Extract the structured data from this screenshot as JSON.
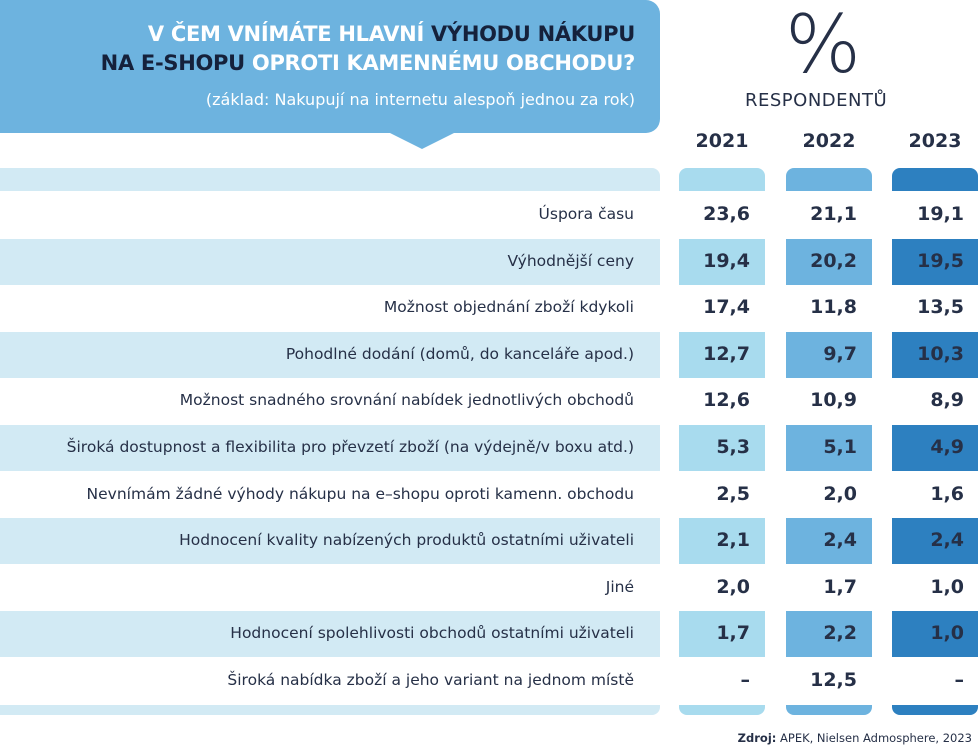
{
  "title": {
    "line1_a": "V ČEM VNÍMÁTE HLAVNÍ ",
    "line1_b": "VÝHODU NÁKUPU",
    "line2_a": "NA E-SHOPU",
    "line2_b": " OPROTI KAMENNÉMU OBCHODU?",
    "subtitle": "(základ: Nakupují na internetu alespoň jednou za rok)"
  },
  "unit": {
    "symbol": "%",
    "label": "RESPONDENTŮ"
  },
  "years": [
    "2021",
    "2022",
    "2023"
  ],
  "colors": {
    "y2021": "#a8dbee",
    "y2022": "#6db3df",
    "y2023": "#2d80c0",
    "row_shade": "#d2eaf4"
  },
  "rows": [
    {
      "label": "Úspora času",
      "values": [
        "23,6",
        "21,1",
        "19,1"
      ]
    },
    {
      "label": "Výhodnější ceny",
      "values": [
        "19,4",
        "20,2",
        "19,5"
      ]
    },
    {
      "label": "Možnost objednání zboží kdykoli",
      "values": [
        "17,4",
        "11,8",
        "13,5"
      ]
    },
    {
      "label": "Pohodlné dodání (domů, do kanceláře apod.)",
      "values": [
        "12,7",
        "9,7",
        "10,3"
      ]
    },
    {
      "label": "Možnost snadného srovnání nabídek jednotlivých obchodů",
      "values": [
        "12,6",
        "10,9",
        "8,9"
      ]
    },
    {
      "label": "Široká dostupnost a flexibilita pro převzetí zboží (na výdejně/v boxu atd.)",
      "values": [
        "5,3",
        "5,1",
        "4,9"
      ]
    },
    {
      "label": "Nevnímám žádné výhody nákupu na e–shopu oproti kamenn. obchodu",
      "values": [
        "2,5",
        "2,0",
        "1,6"
      ]
    },
    {
      "label": "Hodnocení kvality nabízených produktů ostatními uživateli",
      "values": [
        "2,1",
        "2,4",
        "2,4"
      ]
    },
    {
      "label": "Jiné",
      "values": [
        "2,0",
        "1,7",
        "1,0"
      ]
    },
    {
      "label": "Hodnocení spolehlivosti obchodů ostatními uživateli",
      "values": [
        "1,7",
        "2,2",
        "1,0"
      ]
    },
    {
      "label": "Široká nabídka zboží a jeho variant na jednom místě",
      "values": [
        "–",
        "12,5",
        "–"
      ]
    }
  ],
  "source": {
    "label": "Zdroj:",
    "text": " APEK, Nielsen Admosphere, 2023"
  }
}
